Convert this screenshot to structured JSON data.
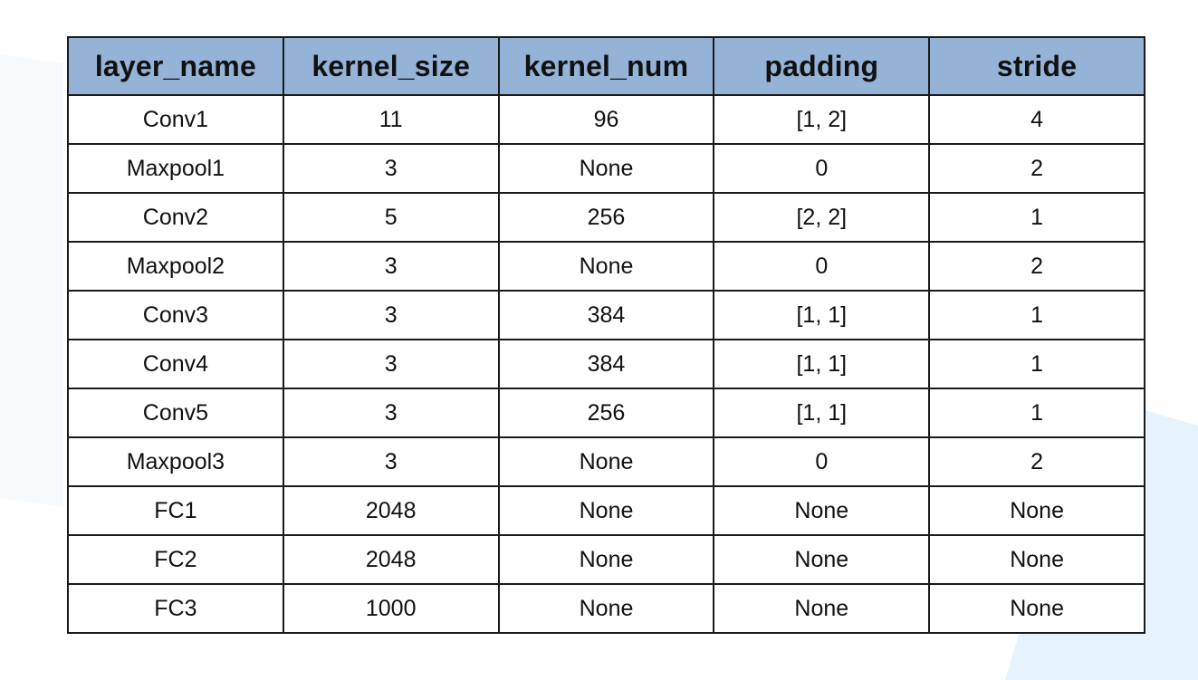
{
  "table": {
    "columns": [
      "layer_name",
      "kernel_size",
      "kernel_num",
      "padding",
      "stride"
    ],
    "rows": [
      [
        "Conv1",
        "11",
        "96",
        "[1, 2]",
        "4"
      ],
      [
        "Maxpool1",
        "3",
        "None",
        "0",
        "2"
      ],
      [
        "Conv2",
        "5",
        "256",
        "[2, 2]",
        "1"
      ],
      [
        "Maxpool2",
        "3",
        "None",
        "0",
        "2"
      ],
      [
        "Conv3",
        "3",
        "384",
        "[1, 1]",
        "1"
      ],
      [
        "Conv4",
        "3",
        "384",
        "[1, 1]",
        "1"
      ],
      [
        "Conv5",
        "3",
        "256",
        "[1, 1]",
        "1"
      ],
      [
        "Maxpool3",
        "3",
        "None",
        "0",
        "2"
      ],
      [
        "FC1",
        "2048",
        "None",
        "None",
        "None"
      ],
      [
        "FC2",
        "2048",
        "None",
        "None",
        "None"
      ],
      [
        "FC3",
        "1000",
        "None",
        "None",
        "None"
      ]
    ]
  },
  "colors": {
    "header_bg": "#95b3d7",
    "border": "#1a1a1a",
    "decor": "#e6f3fc"
  }
}
